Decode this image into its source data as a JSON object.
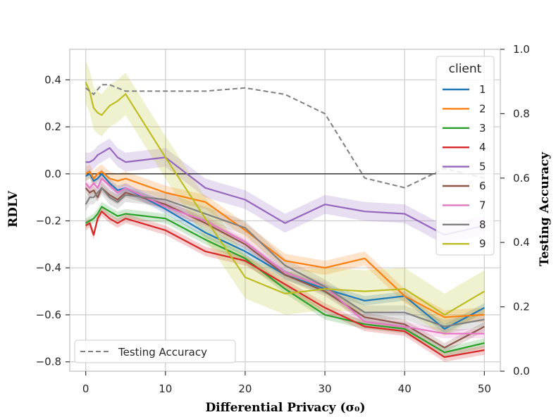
{
  "chart_data": {
    "type": "line",
    "xlabel": "Differential Privacy (σ₀)",
    "ylabel": "RDLV",
    "y2label": "Testing Accuracy",
    "xlim": [
      -2,
      52
    ],
    "ylim": [
      -0.84,
      0.53
    ],
    "y2lim": [
      0.0,
      1.0
    ],
    "xticks": [
      0,
      10,
      20,
      30,
      40,
      50
    ],
    "yticks": [
      0.4,
      0.2,
      0.0,
      -0.2,
      -0.4,
      -0.6,
      -0.8
    ],
    "y2ticks": [
      1.0,
      0.8,
      0.6,
      0.4,
      0.2,
      0.0
    ],
    "ytick_labels": [
      "0.4",
      "0.2",
      "0.0",
      "−0.2",
      "−0.4",
      "−0.6",
      "−0.8"
    ],
    "y2tick_labels": [
      "1.0",
      "0.8",
      "0.6",
      "0.4",
      "0.2",
      "0.0"
    ],
    "grid": true,
    "x": [
      0,
      0.5,
      1,
      1.5,
      2,
      3,
      4,
      5,
      10,
      15,
      20,
      25,
      30,
      35,
      40,
      45,
      50
    ],
    "zero_line": 0.0,
    "legend_title": "client",
    "series": [
      {
        "name": "1",
        "color": "#1f77b4",
        "band": 0.02,
        "values": [
          -0.01,
          0.0,
          -0.03,
          -0.02,
          0.0,
          -0.04,
          -0.07,
          -0.06,
          -0.15,
          -0.25,
          -0.33,
          -0.43,
          -0.49,
          -0.54,
          -0.52,
          -0.66,
          -0.57
        ]
      },
      {
        "name": "2",
        "color": "#ff7f0e",
        "band": 0.03,
        "values": [
          0.0,
          0.01,
          -0.02,
          0.0,
          0.01,
          -0.02,
          -0.03,
          -0.02,
          -0.08,
          -0.12,
          -0.24,
          -0.37,
          -0.4,
          -0.36,
          -0.52,
          -0.61,
          -0.6
        ]
      },
      {
        "name": "3",
        "color": "#2ca02c",
        "band": 0.02,
        "values": [
          -0.21,
          -0.2,
          -0.19,
          -0.17,
          -0.14,
          -0.16,
          -0.18,
          -0.17,
          -0.19,
          -0.28,
          -0.36,
          -0.49,
          -0.6,
          -0.64,
          -0.66,
          -0.76,
          -0.72
        ]
      },
      {
        "name": "4",
        "color": "#d62728",
        "band": 0.02,
        "values": [
          -0.22,
          -0.21,
          -0.26,
          -0.19,
          -0.16,
          -0.19,
          -0.21,
          -0.19,
          -0.24,
          -0.33,
          -0.37,
          -0.47,
          -0.57,
          -0.65,
          -0.67,
          -0.78,
          -0.75
        ]
      },
      {
        "name": "5",
        "color": "#9467bd",
        "band": 0.04,
        "values": [
          0.05,
          0.05,
          0.06,
          0.08,
          0.09,
          0.11,
          0.07,
          0.05,
          0.07,
          -0.06,
          -0.11,
          -0.21,
          -0.13,
          -0.16,
          -0.17,
          -0.26,
          -0.22
        ]
      },
      {
        "name": "6",
        "color": "#8c564b",
        "band": 0.02,
        "values": [
          -0.06,
          -0.08,
          -0.07,
          -0.1,
          -0.06,
          -0.09,
          -0.11,
          -0.08,
          -0.13,
          -0.21,
          -0.3,
          -0.43,
          -0.5,
          -0.61,
          -0.64,
          -0.74,
          -0.65
        ]
      },
      {
        "name": "7",
        "color": "#e377c2",
        "band": 0.02,
        "values": [
          -0.04,
          -0.06,
          -0.04,
          -0.06,
          -0.02,
          -0.05,
          -0.08,
          -0.06,
          -0.14,
          -0.2,
          -0.29,
          -0.42,
          -0.48,
          -0.63,
          -0.65,
          -0.68,
          -0.68
        ]
      },
      {
        "name": "8",
        "color": "#7f7f7f",
        "band": 0.03,
        "values": [
          -0.13,
          -0.1,
          -0.1,
          -0.08,
          -0.06,
          -0.1,
          -0.12,
          -0.09,
          -0.11,
          -0.17,
          -0.23,
          -0.39,
          -0.48,
          -0.59,
          -0.59,
          -0.65,
          -0.62
        ]
      },
      {
        "name": "9",
        "color": "#bcbd22",
        "band": 0.09,
        "values": [
          0.39,
          0.35,
          0.28,
          0.26,
          0.25,
          0.29,
          0.31,
          0.34,
          0.07,
          -0.19,
          -0.44,
          -0.51,
          -0.49,
          -0.5,
          -0.49,
          -0.6,
          -0.5
        ]
      }
    ],
    "secondary_series": {
      "name": "Testing Accuracy",
      "color": "#808080",
      "style": "dashed",
      "axis": "right",
      "x": [
        0,
        1,
        2,
        3,
        4,
        5,
        10,
        15,
        20,
        25,
        30,
        35,
        40,
        45,
        50
      ],
      "values": [
        0.88,
        0.86,
        0.89,
        0.89,
        0.88,
        0.87,
        0.87,
        0.87,
        0.88,
        0.86,
        0.8,
        0.6,
        0.57,
        0.63,
        0.6
      ]
    },
    "legends": [
      {
        "title": "client",
        "position": "top-right"
      },
      {
        "entry": "Testing Accuracy",
        "position": "bottom-left"
      }
    ]
  }
}
